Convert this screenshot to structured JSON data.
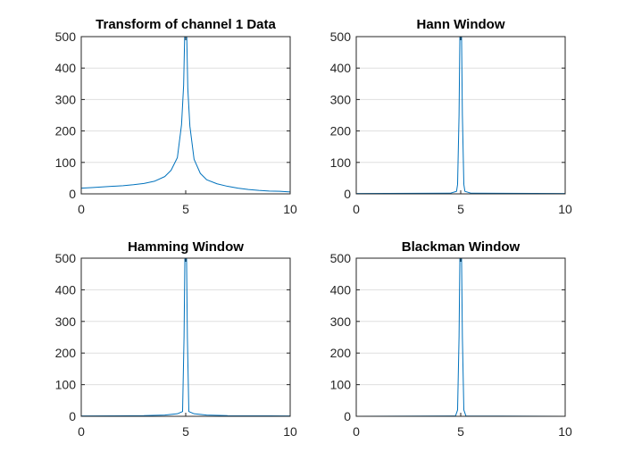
{
  "figure": {
    "background": "#ffffff",
    "series_color": "#0072bd"
  },
  "chart_data": [
    {
      "type": "line",
      "title": "Transform of channel 1 Data",
      "xlim": [
        0,
        10
      ],
      "ylim": [
        0,
        500
      ],
      "grid": "y-only",
      "xticks": [
        0,
        5,
        10
      ],
      "yticks": [
        0,
        100,
        200,
        300,
        400,
        500
      ],
      "series": [
        {
          "points": [
            [
              0.0,
              18
            ],
            [
              0.5,
              20
            ],
            [
              1.0,
              22
            ],
            [
              1.5,
              24
            ],
            [
              2.0,
              26
            ],
            [
              2.5,
              29
            ],
            [
              3.0,
              33
            ],
            [
              3.5,
              40
            ],
            [
              4.0,
              55
            ],
            [
              4.3,
              75
            ],
            [
              4.6,
              115
            ],
            [
              4.8,
              220
            ],
            [
              4.9,
              345
            ],
            [
              4.95,
              500
            ],
            [
              5.05,
              500
            ],
            [
              5.1,
              335
            ],
            [
              5.2,
              215
            ],
            [
              5.4,
              110
            ],
            [
              5.7,
              65
            ],
            [
              6.0,
              45
            ],
            [
              6.5,
              32
            ],
            [
              7.0,
              24
            ],
            [
              7.5,
              18
            ],
            [
              8.0,
              14
            ],
            [
              8.5,
              11
            ],
            [
              9.0,
              9
            ],
            [
              9.5,
              8
            ],
            [
              10.0,
              6
            ]
          ]
        }
      ]
    },
    {
      "type": "line",
      "title": "Hann Window",
      "xlim": [
        0,
        10
      ],
      "ylim": [
        0,
        500
      ],
      "grid": "y-only",
      "xticks": [
        0,
        5,
        10
      ],
      "yticks": [
        0,
        100,
        200,
        300,
        400,
        500
      ],
      "series": [
        {
          "points": [
            [
              0.0,
              1
            ],
            [
              4.5,
              2
            ],
            [
              4.8,
              8
            ],
            [
              4.85,
              30
            ],
            [
              4.92,
              250
            ],
            [
              4.96,
              500
            ],
            [
              5.04,
              500
            ],
            [
              5.08,
              250
            ],
            [
              5.15,
              30
            ],
            [
              5.2,
              8
            ],
            [
              5.5,
              2
            ],
            [
              10.0,
              1
            ]
          ]
        }
      ]
    },
    {
      "type": "line",
      "title": "Hamming Window",
      "xlim": [
        0,
        10
      ],
      "ylim": [
        0,
        500
      ],
      "grid": "y-only",
      "xticks": [
        0,
        5,
        10
      ],
      "yticks": [
        0,
        100,
        200,
        300,
        400,
        500
      ],
      "series": [
        {
          "points": [
            [
              0.0,
              1
            ],
            [
              3.0,
              2
            ],
            [
              4.0,
              4
            ],
            [
              4.6,
              8
            ],
            [
              4.85,
              15
            ],
            [
              4.92,
              250
            ],
            [
              4.96,
              500
            ],
            [
              5.04,
              500
            ],
            [
              5.08,
              250
            ],
            [
              5.15,
              15
            ],
            [
              5.4,
              8
            ],
            [
              6.0,
              4
            ],
            [
              7.0,
              2
            ],
            [
              10.0,
              1
            ]
          ]
        }
      ]
    },
    {
      "type": "line",
      "title": "Blackman Window",
      "xlim": [
        0,
        10
      ],
      "ylim": [
        0,
        500
      ],
      "grid": "y-only",
      "xticks": [
        0,
        5,
        10
      ],
      "yticks": [
        0,
        100,
        200,
        300,
        400,
        500
      ],
      "series": [
        {
          "points": [
            [
              0.0,
              0
            ],
            [
              4.75,
              1
            ],
            [
              4.85,
              20
            ],
            [
              4.92,
              250
            ],
            [
              4.96,
              500
            ],
            [
              5.04,
              500
            ],
            [
              5.08,
              250
            ],
            [
              5.15,
              20
            ],
            [
              5.25,
              1
            ],
            [
              10.0,
              0
            ]
          ]
        }
      ]
    }
  ]
}
